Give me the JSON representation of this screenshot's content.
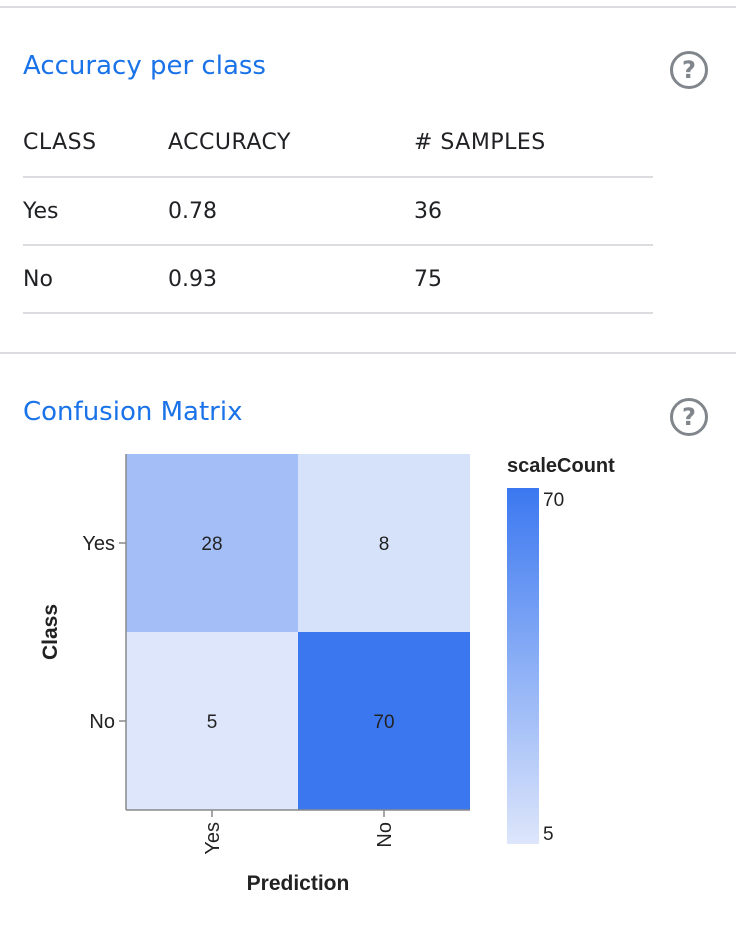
{
  "accuracy_section": {
    "title": "Accuracy per class",
    "headers": [
      "CLASS",
      "ACCURACY",
      "# SAMPLES"
    ],
    "rows": [
      {
        "class": "Yes",
        "accuracy": "0.78",
        "samples": "36"
      },
      {
        "class": "No",
        "accuracy": "0.93",
        "samples": "75"
      }
    ]
  },
  "confusion_section": {
    "title": "Confusion Matrix"
  },
  "help_icon_glyph": "?",
  "chart_data": {
    "type": "heatmap",
    "x_categories": [
      "Yes",
      "No"
    ],
    "y_categories": [
      "Yes",
      "No"
    ],
    "xlabel": "Prediction",
    "ylabel": "Class",
    "cells": [
      {
        "class": "Yes",
        "prediction": "Yes",
        "value": 28
      },
      {
        "class": "Yes",
        "prediction": "No",
        "value": 8
      },
      {
        "class": "No",
        "prediction": "Yes",
        "value": 5
      },
      {
        "class": "No",
        "prediction": "No",
        "value": 70
      }
    ],
    "legend": {
      "title": "scaleCount",
      "min": 5,
      "max": 70,
      "placement": "right"
    },
    "colors": {
      "low": "#dde6fb",
      "high": "#3b78f0"
    }
  }
}
